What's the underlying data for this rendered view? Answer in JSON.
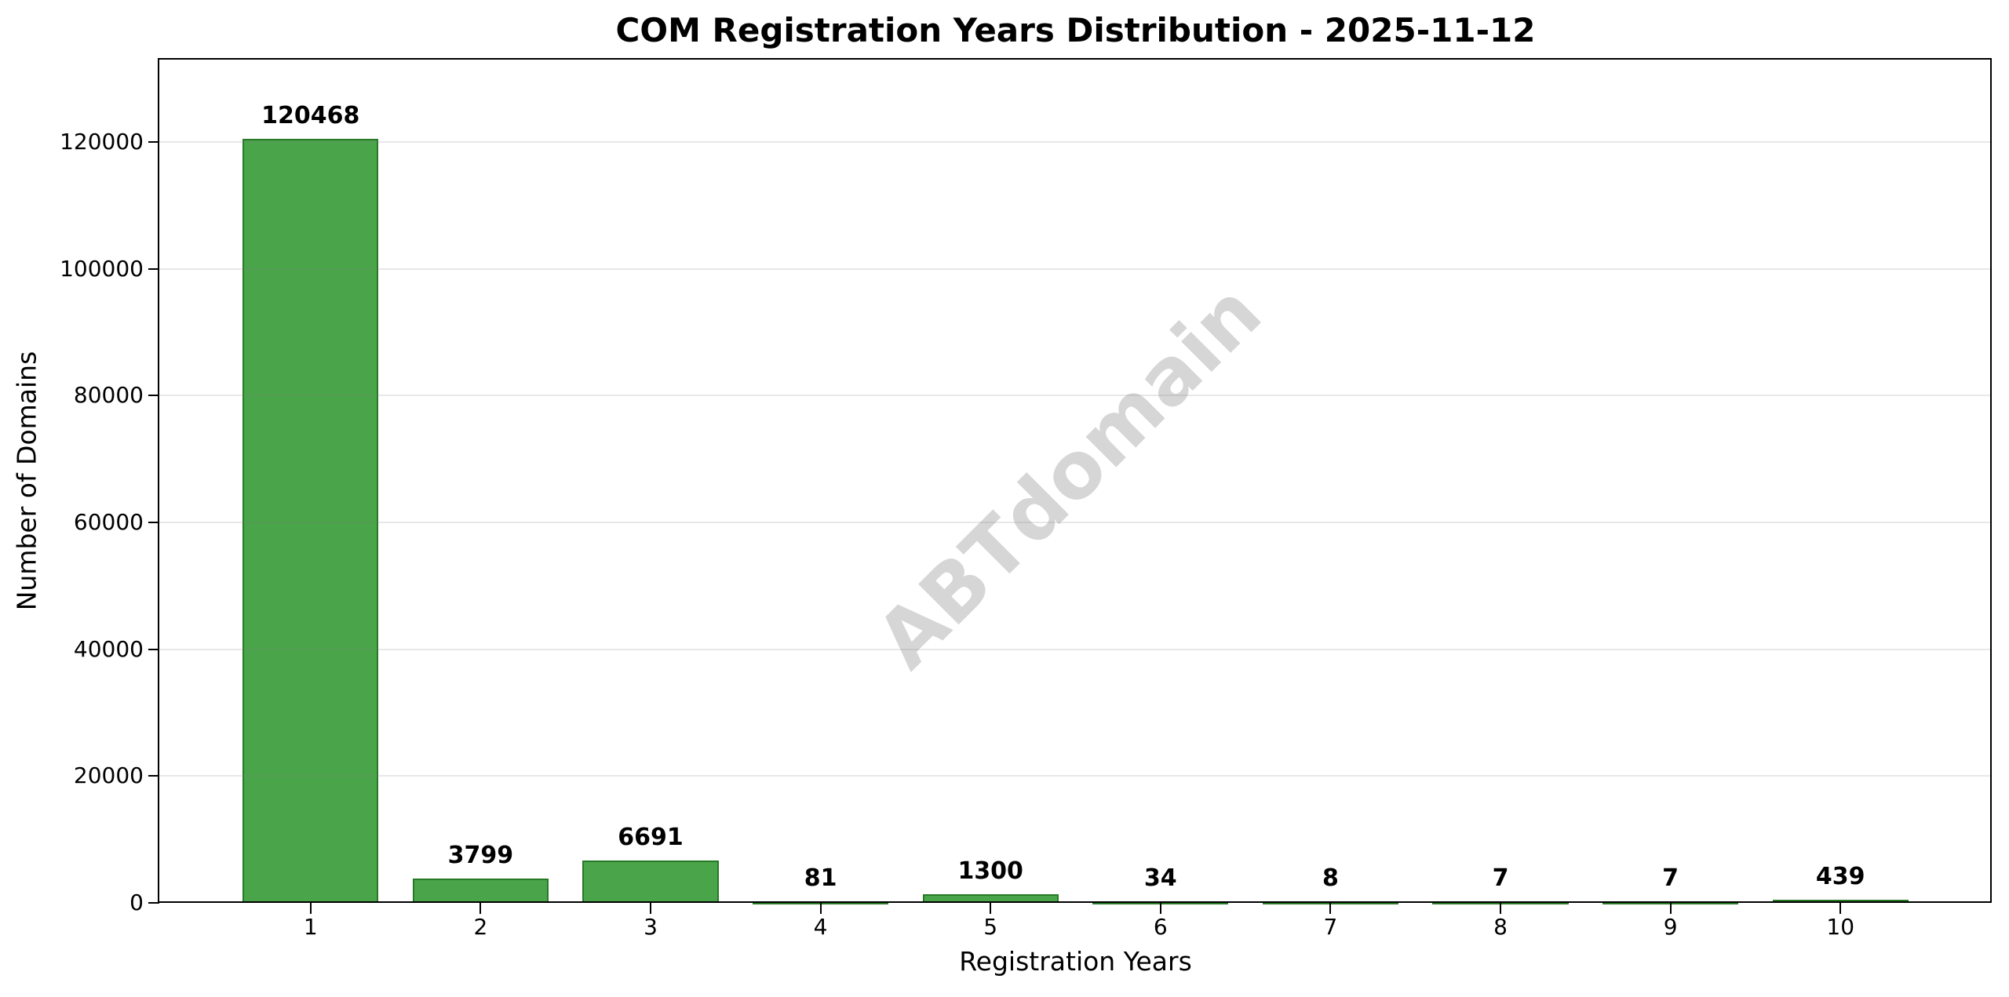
{
  "figure": {
    "background": "#ffffff"
  },
  "chart_data": {
    "type": "bar",
    "title": "COM Registration Years Distribution - 2025-11-12",
    "xlabel": "Registration Years",
    "ylabel": "Number of Domains",
    "watermark": "ABTdomain",
    "categories": [
      1,
      2,
      3,
      4,
      5,
      6,
      7,
      8,
      9,
      10
    ],
    "values": [
      120468,
      3799,
      6691,
      81,
      1300,
      34,
      8,
      7,
      7,
      439
    ],
    "bar_labels": [
      "120468",
      "3799",
      "6691",
      "81",
      "1300",
      "34",
      "8",
      "7",
      "7",
      "439"
    ],
    "xlim": [
      0.11,
      10.89
    ],
    "ylim": [
      0,
      133000
    ],
    "yticks": [
      0,
      20000,
      40000,
      60000,
      80000,
      100000,
      120000
    ],
    "bar_width": 0.8,
    "grid": "horizontal",
    "legend": "none",
    "colors": {
      "bar_fill": "#4aa44a",
      "bar_edge": "#267a26",
      "grid": "rgba(128,128,128,0.18)",
      "watermark": "#d6d6d6",
      "text": "#000000"
    }
  }
}
